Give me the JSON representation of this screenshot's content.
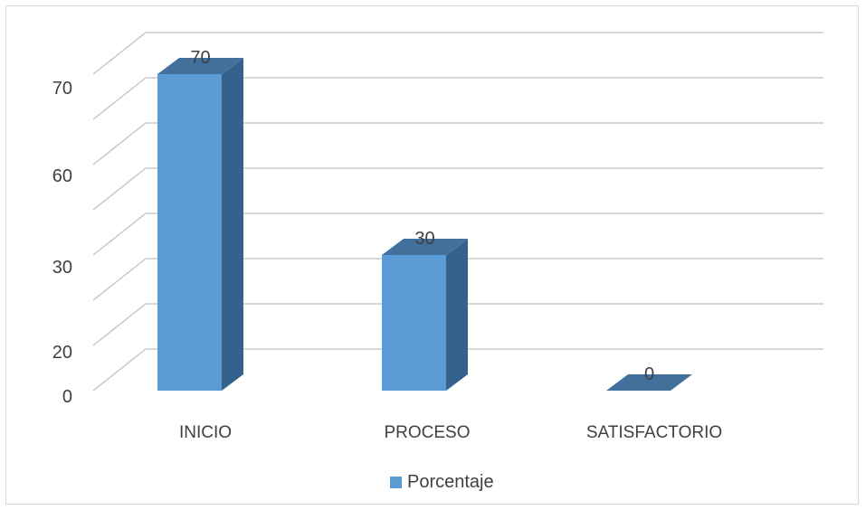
{
  "chart_data": {
    "type": "bar",
    "categories": [
      "INICIO",
      "PROCESO",
      "SATISFACTORIO"
    ],
    "series": [
      {
        "name": "Porcentaje",
        "values": [
          70,
          30,
          0
        ]
      }
    ],
    "data_labels": [
      "70",
      "30",
      "0"
    ],
    "y_tick_labels": [
      "0",
      "20",
      "30",
      "60",
      "70"
    ],
    "ylim": [
      0,
      70
    ],
    "grid": true,
    "legend_position": "bottom",
    "colors": {
      "front": "#5B9BD5",
      "side": "#35628D",
      "top": "#41709C",
      "grid": "#bfbfbf"
    }
  }
}
